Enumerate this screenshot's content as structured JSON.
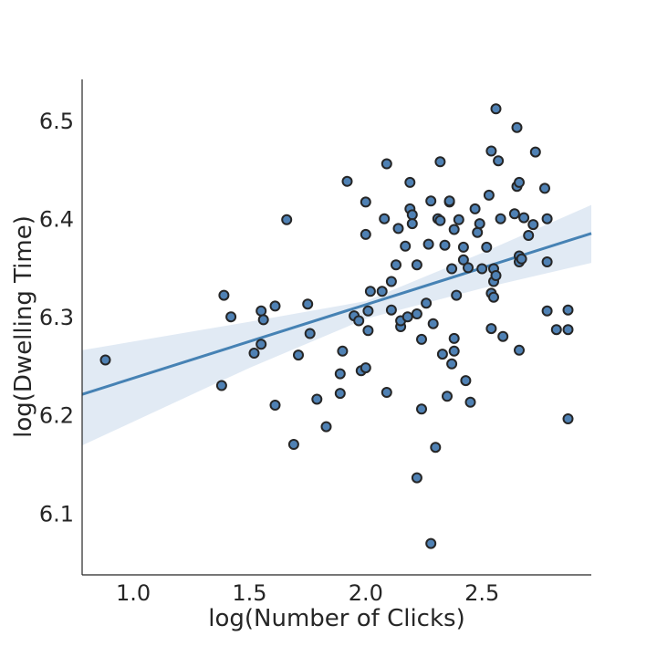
{
  "chart_data": {
    "type": "scatter",
    "title": "",
    "xlabel": "log(Number of Clicks)",
    "ylabel": "log(Dwelling Time)",
    "xlim": [
      0.78,
      2.97
    ],
    "ylim": [
      6.037,
      6.542
    ],
    "xticks": [
      1.0,
      1.5,
      2.0,
      2.5
    ],
    "yticks": [
      6.1,
      6.2,
      6.3,
      6.4,
      6.5
    ],
    "xtick_labels": [
      "1.0",
      "1.5",
      "2.0",
      "2.5"
    ],
    "ytick_labels": [
      "6.1",
      "6.2",
      "6.3",
      "6.4",
      "6.5"
    ],
    "grid": false,
    "point_color": "#4f81b4",
    "line_color": "#4682b4",
    "band_color": "#dce6f2",
    "regression": {
      "x_start": 0.78,
      "y_start": 6.221,
      "x_end": 2.97,
      "y_end": 6.385,
      "ci_lower": [
        [
          0.78,
          6.169
        ],
        [
          1.5,
          6.248
        ],
        [
          2.0,
          6.298
        ],
        [
          2.5,
          6.329
        ],
        [
          2.97,
          6.355
        ]
      ],
      "ci_upper": [
        [
          0.78,
          6.266
        ],
        [
          1.5,
          6.295
        ],
        [
          2.0,
          6.316
        ],
        [
          2.5,
          6.365
        ],
        [
          2.97,
          6.414
        ]
      ]
    },
    "points": [
      [
        0.88,
        6.256
      ],
      [
        1.38,
        6.23
      ],
      [
        1.39,
        6.322
      ],
      [
        1.42,
        6.3
      ],
      [
        1.52,
        6.263
      ],
      [
        1.55,
        6.306
      ],
      [
        1.55,
        6.272
      ],
      [
        1.56,
        6.297
      ],
      [
        1.61,
        6.311
      ],
      [
        1.61,
        6.21
      ],
      [
        1.66,
        6.399
      ],
      [
        1.69,
        6.17
      ],
      [
        1.71,
        6.261
      ],
      [
        1.75,
        6.313
      ],
      [
        1.76,
        6.283
      ],
      [
        1.79,
        6.216
      ],
      [
        1.83,
        6.188
      ],
      [
        1.89,
        6.222
      ],
      [
        1.89,
        6.242
      ],
      [
        1.9,
        6.265
      ],
      [
        1.92,
        6.438
      ],
      [
        1.95,
        6.301
      ],
      [
        1.97,
        6.296
      ],
      [
        1.98,
        6.245
      ],
      [
        2.0,
        6.248
      ],
      [
        2.0,
        6.384
      ],
      [
        2.0,
        6.417
      ],
      [
        2.01,
        6.286
      ],
      [
        2.01,
        6.306
      ],
      [
        2.02,
        6.326
      ],
      [
        2.07,
        6.326
      ],
      [
        2.08,
        6.4
      ],
      [
        2.09,
        6.456
      ],
      [
        2.09,
        6.223
      ],
      [
        2.11,
        6.336
      ],
      [
        2.11,
        6.307
      ],
      [
        2.13,
        6.353
      ],
      [
        2.14,
        6.39
      ],
      [
        2.15,
        6.29
      ],
      [
        2.15,
        6.296
      ],
      [
        2.17,
        6.372
      ],
      [
        2.18,
        6.3
      ],
      [
        2.19,
        6.437
      ],
      [
        2.19,
        6.41
      ],
      [
        2.2,
        6.404
      ],
      [
        2.2,
        6.395
      ],
      [
        2.22,
        6.353
      ],
      [
        2.22,
        6.303
      ],
      [
        2.22,
        6.136
      ],
      [
        2.24,
        6.206
      ],
      [
        2.24,
        6.277
      ],
      [
        2.26,
        6.314
      ],
      [
        2.27,
        6.374
      ],
      [
        2.28,
        6.418
      ],
      [
        2.28,
        6.069
      ],
      [
        2.29,
        6.293
      ],
      [
        2.3,
        6.167
      ],
      [
        2.31,
        6.4
      ],
      [
        2.32,
        6.398
      ],
      [
        2.32,
        6.458
      ],
      [
        2.33,
        6.262
      ],
      [
        2.34,
        6.373
      ],
      [
        2.35,
        6.219
      ],
      [
        2.36,
        6.417
      ],
      [
        2.36,
        6.418
      ],
      [
        2.37,
        6.349
      ],
      [
        2.37,
        6.252
      ],
      [
        2.38,
        6.389
      ],
      [
        2.38,
        6.278
      ],
      [
        2.38,
        6.265
      ],
      [
        2.39,
        6.322
      ],
      [
        2.4,
        6.399
      ],
      [
        2.42,
        6.371
      ],
      [
        2.42,
        6.358
      ],
      [
        2.43,
        6.235
      ],
      [
        2.44,
        6.35
      ],
      [
        2.45,
        6.213
      ],
      [
        2.47,
        6.41
      ],
      [
        2.48,
        6.386
      ],
      [
        2.49,
        6.395
      ],
      [
        2.5,
        6.349
      ],
      [
        2.52,
        6.371
      ],
      [
        2.53,
        6.424
      ],
      [
        2.54,
        6.469
      ],
      [
        2.54,
        6.324
      ],
      [
        2.54,
        6.288
      ],
      [
        2.55,
        6.336
      ],
      [
        2.55,
        6.32
      ],
      [
        2.55,
        6.349
      ],
      [
        2.56,
        6.512
      ],
      [
        2.56,
        6.342
      ],
      [
        2.57,
        6.459
      ],
      [
        2.58,
        6.4
      ],
      [
        2.59,
        6.28
      ],
      [
        2.64,
        6.405
      ],
      [
        2.65,
        6.493
      ],
      [
        2.65,
        6.433
      ],
      [
        2.66,
        6.437
      ],
      [
        2.66,
        6.362
      ],
      [
        2.66,
        6.356
      ],
      [
        2.66,
        6.266
      ],
      [
        2.67,
        6.359
      ],
      [
        2.68,
        6.401
      ],
      [
        2.7,
        6.383
      ],
      [
        2.72,
        6.394
      ],
      [
        2.73,
        6.468
      ],
      [
        2.77,
        6.431
      ],
      [
        2.78,
        6.4
      ],
      [
        2.78,
        6.356
      ],
      [
        2.78,
        6.306
      ],
      [
        2.82,
        6.287
      ],
      [
        2.87,
        6.307
      ],
      [
        2.87,
        6.287
      ],
      [
        2.87,
        6.196
      ]
    ]
  }
}
